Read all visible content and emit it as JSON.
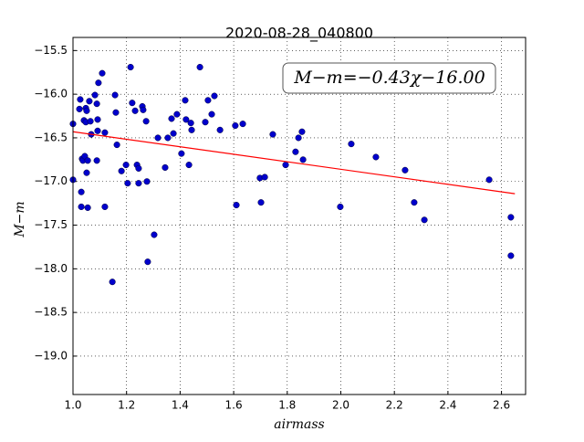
{
  "chart_data": {
    "type": "scatter",
    "title": "2020-08-28_040800",
    "x_label": "airmass",
    "y_label": "M−m",
    "annotation": "M−m=−0.43χ−16.00",
    "xlim": [
      1.0,
      2.69
    ],
    "ylim": [
      -19.44,
      -15.35
    ],
    "xticks": [
      {
        "value": 1.0,
        "label": "1.0"
      },
      1.2,
      1.4,
      1.6,
      1.8,
      {
        "value": 2.0,
        "label": "2.0"
      },
      2.2,
      2.4,
      2.6
    ],
    "yticks": [
      {
        "value": -15.5,
        "label": "−15.5"
      },
      {
        "value": -16.0,
        "label": "−16.0"
      },
      {
        "value": -16.5,
        "label": "−16.5"
      },
      {
        "value": -17.0,
        "label": "−17.0"
      },
      {
        "value": -17.5,
        "label": "−17.5"
      },
      {
        "value": -18.0,
        "label": "−18.0"
      },
      {
        "value": -18.5,
        "label": "−18.5"
      },
      {
        "value": -19.0,
        "label": "−19.0"
      }
    ],
    "grid": true,
    "series": [
      {
        "color": "#0000cc",
        "x": [
          1.0,
          1.0,
          1.024,
          1.027,
          1.031,
          1.031,
          1.034,
          1.037,
          1.041,
          1.044,
          1.048,
          1.048,
          1.051,
          1.051,
          1.055,
          1.055,
          1.061,
          1.065,
          1.068,
          1.082,
          1.089,
          1.089,
          1.092,
          1.092,
          1.095,
          1.109,
          1.119,
          1.119,
          1.147,
          1.157,
          1.16,
          1.164,
          1.181,
          1.198,
          1.204,
          1.215,
          1.221,
          1.232,
          1.239,
          1.245,
          1.245,
          1.259,
          1.262,
          1.273,
          1.276,
          1.279,
          1.303,
          1.317,
          1.344,
          1.354,
          1.368,
          1.375,
          1.388,
          1.405,
          1.419,
          1.422,
          1.433,
          1.44,
          1.443,
          1.474,
          1.494,
          1.504,
          1.518,
          1.528,
          1.549,
          1.606,
          1.61,
          1.634,
          1.698,
          1.702,
          1.716,
          1.746,
          1.794,
          1.831,
          1.842,
          1.855,
          1.859,
          1.998,
          2.039,
          2.131,
          2.24,
          2.274,
          2.312,
          2.554,
          2.635,
          2.635
        ],
        "values": [
          -16.34,
          -16.98,
          -16.17,
          -16.06,
          -17.12,
          -17.29,
          -16.74,
          -16.76,
          -16.3,
          -16.71,
          -16.16,
          -16.32,
          -16.19,
          -16.9,
          -17.3,
          -16.76,
          -16.08,
          -16.31,
          -16.46,
          -16.01,
          -16.76,
          -16.11,
          -16.29,
          -16.42,
          -15.87,
          -15.76,
          -16.44,
          -17.29,
          -18.15,
          -16.01,
          -16.21,
          -16.58,
          -16.88,
          -16.81,
          -17.02,
          -15.69,
          -16.1,
          -16.19,
          -16.81,
          -17.02,
          -16.85,
          -16.14,
          -16.18,
          -16.31,
          -17.0,
          -17.92,
          -17.61,
          -16.5,
          -16.84,
          -16.5,
          -16.28,
          -16.45,
          -16.23,
          -16.68,
          -16.07,
          -16.29,
          -16.81,
          -16.33,
          -16.41,
          -15.69,
          -16.32,
          -16.07,
          -16.23,
          -16.02,
          -16.41,
          -16.36,
          -17.27,
          -16.34,
          -16.96,
          -17.24,
          -16.95,
          -16.46,
          -16.81,
          -16.66,
          -16.5,
          -16.43,
          -16.75,
          -17.29,
          -16.57,
          -16.72,
          -16.87,
          -17.24,
          -17.44,
          -16.98,
          -17.41,
          -17.85
        ]
      },
      {
        "type": "line",
        "color": "#ff0000",
        "x": [
          1.0,
          2.65
        ],
        "values": [
          -16.43,
          -17.14
        ]
      }
    ]
  }
}
